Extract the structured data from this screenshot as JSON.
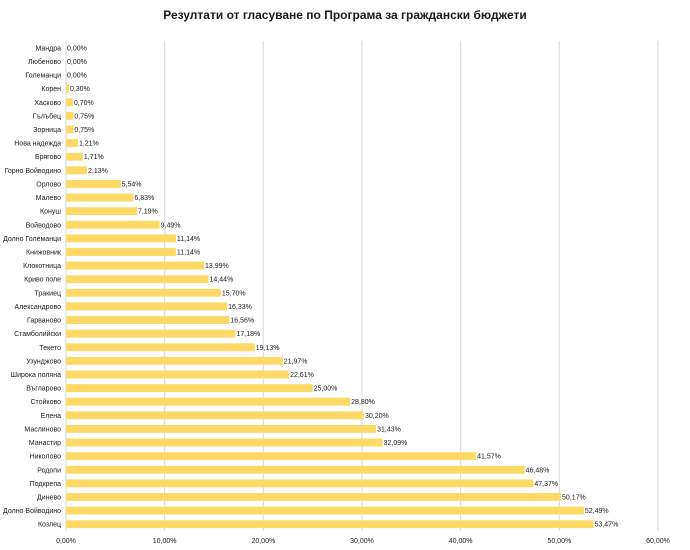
{
  "chart_data": {
    "type": "bar",
    "orientation": "horizontal",
    "title": "Резултати от гласуване по Програма за граждански бюджети",
    "categories": [
      "Мандра",
      "Любеново",
      "Големанци",
      "Корен",
      "Хасково",
      "Гълъбец",
      "Зорница",
      "Нова надежда",
      "Брягово",
      "Горно Войводино",
      "Орлово",
      "Малево",
      "Конуш",
      "Войводово",
      "Долно Големанци",
      "Книжовник",
      "Клокотница",
      "Криво поле",
      "Тракиец",
      "Александрово",
      "Гарваново",
      "Стамболийски",
      "Текето",
      "Узунджово",
      "Широка поляна",
      "Въгларово",
      "Стойково",
      "Елена",
      "Маслиново",
      "Манастир",
      "Николово",
      "Родопи",
      "Подкрепа",
      "Динево",
      "Долно Войводино",
      "Козлец"
    ],
    "values": [
      0.0,
      0.0,
      0.0,
      0.3,
      0.7,
      0.75,
      0.75,
      1.21,
      1.71,
      2.13,
      5.54,
      6.83,
      7.19,
      9.49,
      11.14,
      11.14,
      13.99,
      14.44,
      15.7,
      16.33,
      16.56,
      17.18,
      19.13,
      21.97,
      22.61,
      25.0,
      28.8,
      30.2,
      31.43,
      32.09,
      41.57,
      46.48,
      47.37,
      50.17,
      52.49,
      53.47
    ],
    "data_labels": [
      "0,00%",
      "0,00%",
      "0,00%",
      "0,30%",
      "0,70%",
      "0,75%",
      "0,75%",
      "1,21%",
      "1,71%",
      "2,13%",
      "5,54%",
      "6,83%",
      "7,19%",
      "9,49%",
      "11,14%",
      "11,14%",
      "13,99%",
      "14,44%",
      "15,70%",
      "16,33%",
      "16,56%",
      "17,18%",
      "19,13%",
      "21,97%",
      "22,61%",
      "25,00%",
      "28,80%",
      "30,20%",
      "31,43%",
      "32,09%",
      "41,57%",
      "46,48%",
      "47,37%",
      "50,17%",
      "52,49%",
      "53,47%"
    ],
    "xlim": [
      0,
      60
    ],
    "x_ticks": [
      0,
      10,
      20,
      30,
      40,
      50,
      60
    ],
    "x_tick_labels": [
      "0,00%",
      "10,00%",
      "20,00%",
      "30,00%",
      "40,00%",
      "50,00%",
      "60,00%"
    ],
    "grid": "vertical",
    "legend": "none",
    "colors": {
      "bar": "#FFD966",
      "grid": "#D9D9D9",
      "text": "#1a1a1a"
    }
  }
}
